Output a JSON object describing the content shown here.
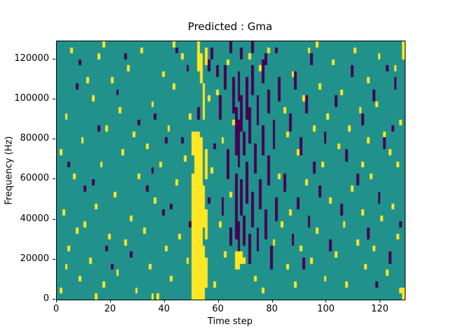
{
  "chart_data": {
    "type": "heatmap",
    "title": "Predicted : Gma",
    "xlabel": "Time step",
    "ylabel": "Frequency (Hz)",
    "x_range": [
      0,
      129
    ],
    "y_range": [
      0,
      129000
    ],
    "xticks": [
      0,
      20,
      40,
      60,
      80,
      100,
      120
    ],
    "yticks": [
      0,
      20000,
      40000,
      60000,
      80000,
      100000,
      120000
    ],
    "grid": {
      "cols": 129,
      "rows": 43,
      "cell_height_hz": 3000,
      "gridlines": "off"
    },
    "legend": "none",
    "colors": {
      "background": "#21918c",
      "high": "#fde725",
      "low": "#440154"
    },
    "cells": {
      "note": "spans are [col, rowStart, rowEnd]; row 0 = bottom (0 Hz), each row = 3000 Hz, each col = 1 time step",
      "yellow_spans": [
        [
          1,
          1,
          1
        ],
        [
          1,
          24,
          24
        ],
        [
          2,
          14,
          14
        ],
        [
          3,
          5,
          5
        ],
        [
          3,
          30,
          30
        ],
        [
          4,
          8,
          8
        ],
        [
          5,
          41,
          41
        ],
        [
          6,
          20,
          20
        ],
        [
          7,
          11,
          11
        ],
        [
          8,
          3,
          3
        ],
        [
          9,
          26,
          26
        ],
        [
          10,
          12,
          12
        ],
        [
          11,
          36,
          36
        ],
        [
          12,
          6,
          6
        ],
        [
          13,
          33,
          33
        ],
        [
          14,
          0,
          0
        ],
        [
          14,
          15,
          15
        ],
        [
          15,
          40,
          40
        ],
        [
          16,
          22,
          22
        ],
        [
          17,
          2,
          2
        ],
        [
          17,
          42,
          42
        ],
        [
          18,
          28,
          28
        ],
        [
          19,
          10,
          10
        ],
        [
          20,
          36,
          36
        ],
        [
          21,
          17,
          17
        ],
        [
          22,
          4,
          4
        ],
        [
          23,
          31,
          31
        ],
        [
          24,
          24,
          24
        ],
        [
          25,
          9,
          9
        ],
        [
          26,
          38,
          38
        ],
        [
          27,
          13,
          13
        ],
        [
          28,
          27,
          27
        ],
        [
          29,
          1,
          1
        ],
        [
          30,
          20,
          20
        ],
        [
          31,
          41,
          41
        ],
        [
          32,
          11,
          11
        ],
        [
          33,
          25,
          25
        ],
        [
          34,
          5,
          5
        ],
        [
          35,
          0,
          0
        ],
        [
          35,
          32,
          32
        ],
        [
          36,
          16,
          16
        ],
        [
          37,
          0,
          0
        ],
        [
          38,
          22,
          22
        ],
        [
          39,
          37,
          37
        ],
        [
          40,
          8,
          8
        ],
        [
          41,
          28,
          28
        ],
        [
          42,
          3,
          3
        ],
        [
          43,
          35,
          35
        ],
        [
          43,
          42,
          42
        ],
        [
          44,
          19,
          19
        ],
        [
          45,
          10,
          10
        ],
        [
          46,
          40,
          40
        ],
        [
          47,
          23,
          23
        ],
        [
          48,
          6,
          6
        ],
        [
          49,
          30,
          30
        ],
        [
          50,
          0,
          20
        ],
        [
          50,
          24,
          27
        ],
        [
          51,
          0,
          27
        ],
        [
          52,
          0,
          27
        ],
        [
          52,
          38,
          42
        ],
        [
          53,
          0,
          26
        ],
        [
          53,
          36,
          40
        ],
        [
          54,
          0,
          8
        ],
        [
          54,
          12,
          18
        ],
        [
          54,
          30,
          35
        ],
        [
          55,
          2,
          6
        ],
        [
          55,
          10,
          14
        ],
        [
          55,
          20,
          24
        ],
        [
          55,
          39,
          41
        ],
        [
          56,
          33,
          33
        ],
        [
          57,
          21,
          21
        ],
        [
          58,
          2,
          2
        ],
        [
          59,
          34,
          34
        ],
        [
          60,
          12,
          12
        ],
        [
          61,
          26,
          26
        ],
        [
          62,
          7,
          7
        ],
        [
          63,
          39,
          39
        ],
        [
          64,
          17,
          17
        ],
        [
          65,
          29,
          29
        ],
        [
          66,
          5,
          7
        ],
        [
          67,
          5,
          7
        ],
        [
          68,
          6,
          7
        ],
        [
          69,
          6,
          6
        ],
        [
          71,
          40,
          40
        ],
        [
          73,
          3,
          3
        ],
        [
          75,
          38,
          38
        ],
        [
          76,
          1,
          1
        ],
        [
          78,
          41,
          41
        ],
        [
          80,
          9,
          9
        ],
        [
          82,
          20,
          20
        ],
        [
          83,
          12,
          12
        ],
        [
          84,
          31,
          31
        ],
        [
          85,
          5,
          5
        ],
        [
          85,
          27,
          27
        ],
        [
          86,
          14,
          14
        ],
        [
          87,
          37,
          37
        ],
        [
          88,
          2,
          2
        ],
        [
          89,
          24,
          24
        ],
        [
          90,
          8,
          8
        ],
        [
          91,
          33,
          33
        ],
        [
          92,
          19,
          19
        ],
        [
          93,
          41,
          41
        ],
        [
          94,
          6,
          6
        ],
        [
          95,
          28,
          28
        ],
        [
          96,
          11,
          11
        ],
        [
          96,
          42,
          42
        ],
        [
          97,
          35,
          35
        ],
        [
          98,
          22,
          22
        ],
        [
          99,
          3,
          3
        ],
        [
          100,
          30,
          30
        ],
        [
          101,
          16,
          16
        ],
        [
          102,
          39,
          39
        ],
        [
          103,
          7,
          7
        ],
        [
          104,
          25,
          25
        ],
        [
          105,
          34,
          34
        ],
        [
          106,
          12,
          12
        ],
        [
          107,
          2,
          2
        ],
        [
          108,
          28,
          28
        ],
        [
          109,
          18,
          18
        ],
        [
          110,
          41,
          41
        ],
        [
          111,
          9,
          9
        ],
        [
          112,
          31,
          31
        ],
        [
          113,
          14,
          14
        ],
        [
          113,
          22,
          22
        ],
        [
          114,
          5,
          5
        ],
        [
          115,
          26,
          26
        ],
        [
          115,
          36,
          36
        ],
        [
          116,
          20,
          20
        ],
        [
          117,
          8,
          8
        ],
        [
          118,
          32,
          32
        ],
        [
          119,
          40,
          40
        ],
        [
          120,
          13,
          13
        ],
        [
          121,
          27,
          27
        ],
        [
          122,
          4,
          4
        ],
        [
          123,
          24,
          24
        ],
        [
          124,
          15,
          15
        ],
        [
          125,
          38,
          38
        ],
        [
          126,
          10,
          10
        ],
        [
          126,
          22,
          22
        ],
        [
          127,
          1,
          1
        ],
        [
          127,
          29,
          29
        ],
        [
          128,
          0,
          1
        ],
        [
          128,
          40,
          42
        ]
      ],
      "purple_spans": [
        [
          4,
          22,
          22
        ],
        [
          7,
          35,
          35
        ],
        [
          8,
          39,
          39
        ],
        [
          10,
          18,
          18
        ],
        [
          13,
          19,
          19
        ],
        [
          15,
          28,
          28
        ],
        [
          18,
          8,
          8
        ],
        [
          20,
          5,
          5
        ],
        [
          22,
          34,
          34
        ],
        [
          25,
          40,
          40
        ],
        [
          27,
          7,
          7
        ],
        [
          30,
          29,
          29
        ],
        [
          33,
          18,
          18
        ],
        [
          35,
          21,
          21
        ],
        [
          36,
          30,
          30
        ],
        [
          39,
          14,
          14
        ],
        [
          40,
          26,
          26
        ],
        [
          42,
          15,
          15
        ],
        [
          44,
          41,
          41
        ],
        [
          46,
          26,
          26
        ],
        [
          48,
          38,
          38
        ],
        [
          49,
          12,
          12
        ],
        [
          52,
          30,
          31
        ],
        [
          56,
          16,
          16
        ],
        [
          56,
          38,
          39
        ],
        [
          57,
          40,
          41
        ],
        [
          58,
          25,
          25
        ],
        [
          59,
          37,
          38
        ],
        [
          60,
          30,
          33
        ],
        [
          61,
          14,
          16
        ],
        [
          62,
          35,
          38
        ],
        [
          63,
          20,
          24
        ],
        [
          64,
          9,
          11
        ],
        [
          64,
          41,
          42
        ],
        [
          65,
          31,
          36
        ],
        [
          66,
          10,
          20
        ],
        [
          66,
          24,
          31
        ],
        [
          67,
          8,
          12
        ],
        [
          67,
          22,
          29
        ],
        [
          67,
          33,
          37
        ],
        [
          68,
          14,
          19
        ],
        [
          68,
          28,
          33
        ],
        [
          68,
          40,
          41
        ],
        [
          69,
          9,
          13
        ],
        [
          69,
          24,
          27
        ],
        [
          70,
          16,
          22
        ],
        [
          70,
          30,
          36
        ],
        [
          71,
          6,
          10
        ],
        [
          71,
          26,
          31
        ],
        [
          72,
          12,
          17
        ],
        [
          72,
          34,
          38
        ],
        [
          72,
          41,
          42
        ],
        [
          73,
          21,
          25
        ],
        [
          74,
          8,
          11
        ],
        [
          74,
          29,
          33
        ],
        [
          75,
          15,
          19
        ],
        [
          76,
          24,
          28
        ],
        [
          76,
          36,
          39
        ],
        [
          77,
          10,
          14
        ],
        [
          77,
          39,
          40
        ],
        [
          78,
          19,
          23
        ],
        [
          78,
          31,
          34
        ],
        [
          79,
          5,
          8
        ],
        [
          80,
          25,
          29
        ],
        [
          81,
          13,
          16
        ],
        [
          81,
          41,
          41
        ],
        [
          82,
          33,
          36
        ],
        [
          84,
          18,
          20
        ],
        [
          86,
          28,
          30
        ],
        [
          87,
          9,
          10
        ],
        [
          88,
          35,
          37
        ],
        [
          89,
          15,
          16
        ],
        [
          90,
          24,
          26
        ],
        [
          91,
          5,
          6
        ],
        [
          92,
          31,
          33
        ],
        [
          93,
          12,
          13
        ],
        [
          94,
          39,
          40
        ],
        [
          95,
          21,
          22
        ],
        [
          97,
          17,
          18
        ],
        [
          99,
          26,
          27
        ],
        [
          101,
          8,
          9
        ],
        [
          103,
          32,
          33
        ],
        [
          105,
          14,
          15
        ],
        [
          107,
          23,
          24
        ],
        [
          109,
          37,
          38
        ],
        [
          111,
          19,
          20
        ],
        [
          113,
          29,
          30
        ],
        [
          115,
          10,
          11
        ],
        [
          117,
          33,
          34
        ],
        [
          118,
          2,
          2
        ],
        [
          119,
          16,
          17
        ],
        [
          121,
          25,
          26
        ],
        [
          122,
          38,
          38
        ],
        [
          123,
          6,
          7
        ],
        [
          124,
          28,
          28
        ],
        [
          125,
          35,
          36
        ],
        [
          127,
          12,
          12
        ]
      ]
    }
  }
}
